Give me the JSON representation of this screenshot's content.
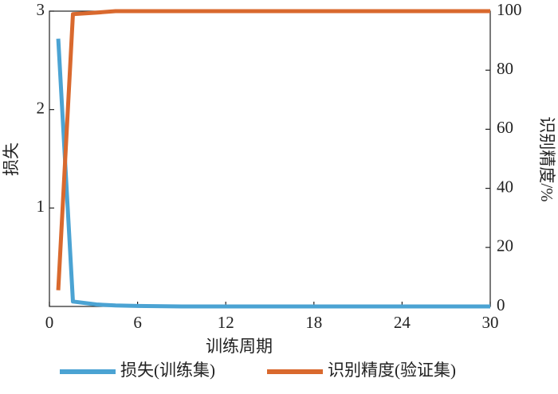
{
  "chart_data": {
    "type": "line",
    "xlabel": "训练周期",
    "ylabel": "损失",
    "y2label": "识别精度/%",
    "x": [
      0.6,
      1.6,
      3.2,
      4.5,
      6,
      9,
      12,
      15,
      18,
      21,
      24,
      27,
      30
    ],
    "series": [
      {
        "name": "损失(训练集)",
        "color": "#4ba3d3",
        "values": [
          2.72,
          0.05,
          0.02,
          0.01,
          0.005,
          0,
          0,
          0,
          0,
          0,
          0,
          0,
          0
        ]
      },
      {
        "name": "识别精度(验证集)",
        "color": "#d9692e",
        "axis": "y2",
        "values": [
          5.5,
          99,
          99.5,
          100,
          100,
          100,
          100,
          100,
          100,
          100,
          100,
          100,
          100
        ]
      }
    ],
    "xlim": [
      0,
      30
    ],
    "xticks": [
      0,
      6,
      12,
      18,
      24,
      30
    ],
    "ylim": [
      0,
      3
    ],
    "yticks": [
      1,
      2,
      3
    ],
    "y2lim": [
      0,
      100
    ],
    "y2ticks": [
      0,
      20,
      40,
      60,
      80,
      100
    ],
    "legend": "bottom"
  }
}
